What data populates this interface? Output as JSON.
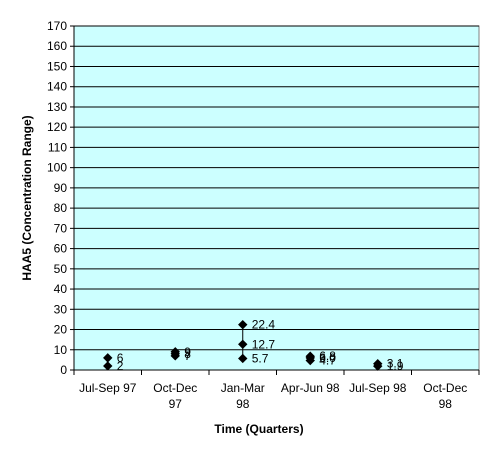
{
  "chart_data": {
    "type": "scatter",
    "title": "",
    "xlabel": "Time (Quarters)",
    "ylabel": "HAA5 (Concentration Range)",
    "ylim": [
      0,
      170
    ],
    "ytick_step": 10,
    "yticks": [
      "0",
      "10",
      "20",
      "30",
      "40",
      "50",
      "60",
      "70",
      "80",
      "90",
      "100",
      "110",
      "120",
      "130",
      "140",
      "150",
      "160",
      "170"
    ],
    "grid": true,
    "background": "#ccffff",
    "marker_color": "#000000",
    "categories": [
      {
        "line1": "Jul-Sep 97",
        "line2": ""
      },
      {
        "line1": "Oct-Dec",
        "line2": "97"
      },
      {
        "line1": "Jan-Mar",
        "line2": "98"
      },
      {
        "line1": "Apr-Jun 98",
        "line2": ""
      },
      {
        "line1": "Jul-Sep 98",
        "line2": ""
      },
      {
        "line1": "Oct-Dec",
        "line2": "98"
      }
    ],
    "points": [
      {
        "cat": 0,
        "y": 6,
        "label": "6",
        "offset": 0
      },
      {
        "cat": 0,
        "y": 2,
        "label": "2",
        "offset": 0
      },
      {
        "cat": 1,
        "y": 9,
        "label": "9",
        "offset": 0
      },
      {
        "cat": 1,
        "y": 8,
        "label": "8",
        "offset": 0
      },
      {
        "cat": 1,
        "y": 7,
        "label": "7",
        "offset": 0
      },
      {
        "cat": 2,
        "y": 22.4,
        "label": "22.4",
        "offset": 0
      },
      {
        "cat": 2,
        "y": 12.7,
        "label": "12.7",
        "offset": 0
      },
      {
        "cat": 2,
        "y": 5.7,
        "label": "5.7",
        "offset": 0
      },
      {
        "cat": 3,
        "y": 6.8,
        "label": "6.8",
        "offset": 0
      },
      {
        "cat": 3,
        "y": 6.0,
        "label": "6.0",
        "offset": 0
      },
      {
        "cat": 3,
        "y": 4.7,
        "label": "4.7",
        "offset": 0
      },
      {
        "cat": 4,
        "y": 3.1,
        "label": "3.1",
        "offset": 0
      },
      {
        "cat": 4,
        "y": 1.9,
        "label": "1.9",
        "offset": 0
      }
    ],
    "ranges": [
      {
        "cat": 2,
        "low": 5.7,
        "high": 22.4
      }
    ]
  }
}
